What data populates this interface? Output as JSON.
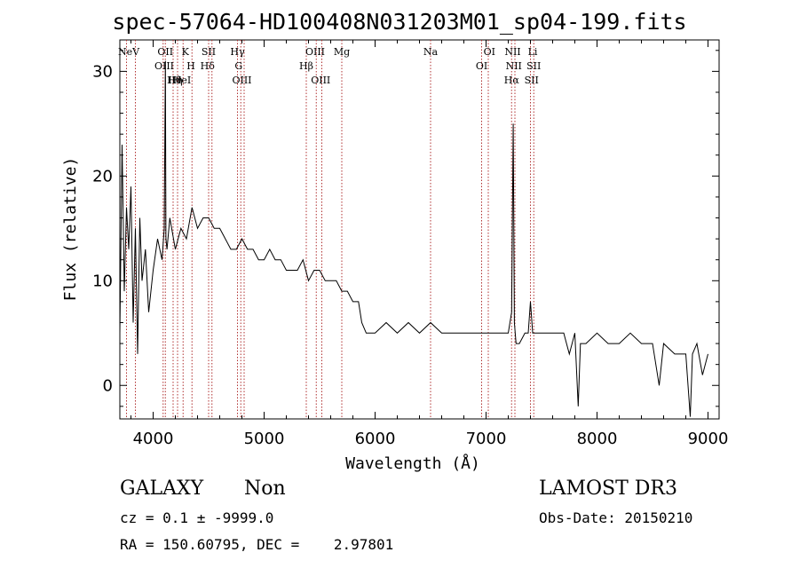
{
  "title": "spec-57064-HD100408N031203M01_sp04-199.fits",
  "info": {
    "class": "GALAXY",
    "subclass": "Non",
    "survey": "LAMOST DR3",
    "cz_line": "cz = 0.1 ± -9999.0",
    "obs_date_line": "Obs-Date: 20150210",
    "radec_line": "RA = 150.60795, DEC =    2.97801"
  },
  "chart_data": {
    "type": "line",
    "xlabel": "Wavelength (Å)",
    "ylabel": "Flux (relative)",
    "xlim": [
      3700,
      9100
    ],
    "ylim": [
      -3.2,
      33
    ],
    "xticks": [
      4000,
      5000,
      6000,
      7000,
      8000,
      9000
    ],
    "yticks": [
      0,
      10,
      20,
      30
    ],
    "series": [
      {
        "x": [
          3700,
          3720,
          3740,
          3760,
          3780,
          3800,
          3820,
          3840,
          3860,
          3880,
          3900,
          3930,
          3960,
          4000,
          4040,
          4080,
          4100,
          4110,
          4115,
          4125,
          4150,
          4200,
          4250,
          4300,
          4350,
          4400,
          4450,
          4500,
          4550,
          4600,
          4650,
          4700,
          4750,
          4800,
          4850,
          4900,
          4950,
          5000,
          5050,
          5100,
          5150,
          5200,
          5250,
          5300,
          5350,
          5400,
          5450,
          5500,
          5550,
          5600,
          5650,
          5700,
          5750,
          5800,
          5850,
          5880,
          5920,
          5960,
          6000,
          6100,
          6200,
          6300,
          6400,
          6500,
          6600,
          6700,
          6800,
          6900,
          7000,
          7100,
          7200,
          7230,
          7245,
          7255,
          7270,
          7300,
          7350,
          7380,
          7400,
          7420,
          7440,
          7500,
          7600,
          7700,
          7750,
          7800,
          7830,
          7850,
          7900,
          8000,
          8100,
          8200,
          8300,
          8400,
          8500,
          8560,
          8600,
          8700,
          8800,
          8840,
          8860,
          8900,
          8950,
          9000
        ],
        "y": [
          5,
          23,
          9,
          17,
          13,
          19,
          6,
          15,
          3,
          16,
          10,
          13,
          7,
          11,
          14,
          12,
          15,
          31,
          14,
          13,
          16,
          13,
          15,
          14,
          17,
          15,
          16,
          16,
          15,
          15,
          14,
          13,
          13,
          14,
          13,
          13,
          12,
          12,
          13,
          12,
          12,
          11,
          11,
          11,
          12,
          10,
          11,
          11,
          10,
          10,
          10,
          9,
          9,
          8,
          8,
          6,
          5,
          5,
          5,
          6,
          5,
          6,
          5,
          6,
          5,
          5,
          5,
          5,
          5,
          5,
          5,
          7,
          25,
          6,
          4,
          4,
          5,
          5,
          8,
          5,
          5,
          5,
          5,
          5,
          3,
          5,
          -2,
          4,
          4,
          5,
          4,
          4,
          5,
          4,
          4,
          0,
          4,
          3,
          3,
          -3,
          3,
          4,
          1,
          3
        ]
      }
    ],
    "annotations": [
      {
        "label": "NeV",
        "x": 3780
      },
      {
        "label": "OII",
        "x": 4110
      },
      {
        "label": "OIII",
        "x": 4100
      },
      {
        "label": "Hη",
        "x": 4200
      },
      {
        "label": "Hθ",
        "x": 4190
      },
      {
        "label": "HeI",
        "x": 4260
      },
      {
        "label": "K",
        "x": 4290
      },
      {
        "label": "H",
        "x": 4340
      },
      {
        "label": "SII",
        "x": 4500
      },
      {
        "label": "Hδ",
        "x": 4490
      },
      {
        "label": "Hγ",
        "x": 4760
      },
      {
        "label": "G",
        "x": 4770
      },
      {
        "label": "OIII",
        "x": 4800
      },
      {
        "label": "OIII",
        "x": 5460
      },
      {
        "label": "Hβ",
        "x": 5380
      },
      {
        "label": "OIII",
        "x": 5510
      },
      {
        "label": "Mg",
        "x": 5700
      },
      {
        "label": "Na",
        "x": 6500
      },
      {
        "label": "OI",
        "x": 7030
      },
      {
        "label": "OI",
        "x": 6960
      },
      {
        "label": "NII",
        "x": 7240
      },
      {
        "label": "NII",
        "x": 7250
      },
      {
        "label": "Hα",
        "x": 7230
      },
      {
        "label": "Li",
        "x": 7420
      },
      {
        "label": "SII",
        "x": 7410
      },
      {
        "label": "SII",
        "x": 7430
      }
    ],
    "annotation_lines": [
      3760,
      3840,
      4090,
      4110,
      4180,
      4220,
      4270,
      4350,
      4500,
      4530,
      4760,
      4790,
      4820,
      5380,
      5470,
      5520,
      5700,
      6500,
      6960,
      7020,
      7230,
      7260,
      7400,
      7430
    ],
    "grid": false,
    "line_color": "#000000",
    "marker_line_color": "#b03030"
  }
}
